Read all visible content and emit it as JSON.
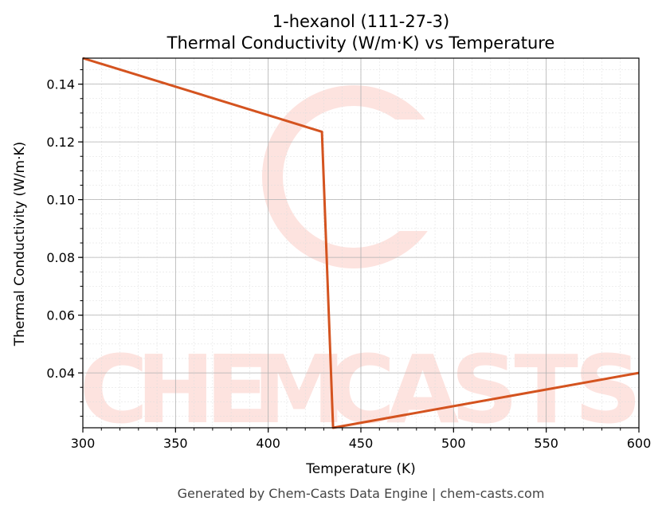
{
  "chart_data": {
    "type": "line",
    "title": "1-hexanol (111-27-3)",
    "subtitle": "Thermal Conductivity (W/m·K) vs Temperature",
    "xlabel": "Temperature (K)",
    "ylabel": "Thermal Conductivity (W/m·K)",
    "xlim": [
      300,
      600
    ],
    "ylim": [
      0.021,
      0.149
    ],
    "xticks": [
      300,
      350,
      400,
      450,
      500,
      550,
      600
    ],
    "yticks": [
      0.04,
      0.06,
      0.08,
      0.1,
      0.12,
      0.14
    ],
    "ytick_labels": [
      "0.04",
      "0.06",
      "0.08",
      "0.10",
      "0.12",
      "0.14"
    ],
    "grid": true,
    "series": [
      {
        "color": "#d4531f",
        "x": [
          300,
          429,
          435,
          600
        ],
        "y": [
          0.149,
          0.1235,
          0.021,
          0.04
        ]
      }
    ]
  },
  "watermark": {
    "text": "CHEMCASTS",
    "color": "#fde3df"
  },
  "footer": "Generated by Chem-Casts Data Engine | chem-casts.com"
}
